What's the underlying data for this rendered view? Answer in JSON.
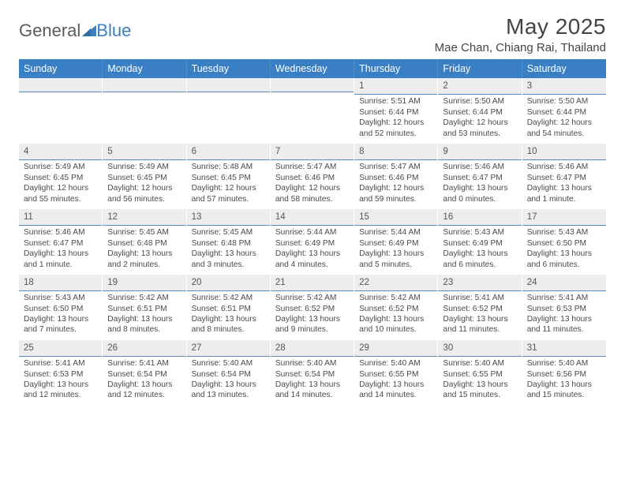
{
  "logo": {
    "part1": "General",
    "part2": "Blue"
  },
  "title": "May 2025",
  "location": "Mae Chan, Chiang Rai, Thailand",
  "weekday_header": {
    "bg_color": "#3a7fc4",
    "text_color": "#ffffff",
    "labels": [
      "Sunday",
      "Monday",
      "Tuesday",
      "Wednesday",
      "Thursday",
      "Friday",
      "Saturday"
    ]
  },
  "daynum_style": {
    "bg_color": "#ededed",
    "underline_color": "#5a8abf"
  },
  "weeks": [
    [
      {
        "day": "",
        "sunrise": "",
        "sunset": "",
        "daylight": ""
      },
      {
        "day": "",
        "sunrise": "",
        "sunset": "",
        "daylight": ""
      },
      {
        "day": "",
        "sunrise": "",
        "sunset": "",
        "daylight": ""
      },
      {
        "day": "",
        "sunrise": "",
        "sunset": "",
        "daylight": ""
      },
      {
        "day": "1",
        "sunrise": "Sunrise: 5:51 AM",
        "sunset": "Sunset: 6:44 PM",
        "daylight": "Daylight: 12 hours and 52 minutes."
      },
      {
        "day": "2",
        "sunrise": "Sunrise: 5:50 AM",
        "sunset": "Sunset: 6:44 PM",
        "daylight": "Daylight: 12 hours and 53 minutes."
      },
      {
        "day": "3",
        "sunrise": "Sunrise: 5:50 AM",
        "sunset": "Sunset: 6:44 PM",
        "daylight": "Daylight: 12 hours and 54 minutes."
      }
    ],
    [
      {
        "day": "4",
        "sunrise": "Sunrise: 5:49 AM",
        "sunset": "Sunset: 6:45 PM",
        "daylight": "Daylight: 12 hours and 55 minutes."
      },
      {
        "day": "5",
        "sunrise": "Sunrise: 5:49 AM",
        "sunset": "Sunset: 6:45 PM",
        "daylight": "Daylight: 12 hours and 56 minutes."
      },
      {
        "day": "6",
        "sunrise": "Sunrise: 5:48 AM",
        "sunset": "Sunset: 6:45 PM",
        "daylight": "Daylight: 12 hours and 57 minutes."
      },
      {
        "day": "7",
        "sunrise": "Sunrise: 5:47 AM",
        "sunset": "Sunset: 6:46 PM",
        "daylight": "Daylight: 12 hours and 58 minutes."
      },
      {
        "day": "8",
        "sunrise": "Sunrise: 5:47 AM",
        "sunset": "Sunset: 6:46 PM",
        "daylight": "Daylight: 12 hours and 59 minutes."
      },
      {
        "day": "9",
        "sunrise": "Sunrise: 5:46 AM",
        "sunset": "Sunset: 6:47 PM",
        "daylight": "Daylight: 13 hours and 0 minutes."
      },
      {
        "day": "10",
        "sunrise": "Sunrise: 5:46 AM",
        "sunset": "Sunset: 6:47 PM",
        "daylight": "Daylight: 13 hours and 1 minute."
      }
    ],
    [
      {
        "day": "11",
        "sunrise": "Sunrise: 5:46 AM",
        "sunset": "Sunset: 6:47 PM",
        "daylight": "Daylight: 13 hours and 1 minute."
      },
      {
        "day": "12",
        "sunrise": "Sunrise: 5:45 AM",
        "sunset": "Sunset: 6:48 PM",
        "daylight": "Daylight: 13 hours and 2 minutes."
      },
      {
        "day": "13",
        "sunrise": "Sunrise: 5:45 AM",
        "sunset": "Sunset: 6:48 PM",
        "daylight": "Daylight: 13 hours and 3 minutes."
      },
      {
        "day": "14",
        "sunrise": "Sunrise: 5:44 AM",
        "sunset": "Sunset: 6:49 PM",
        "daylight": "Daylight: 13 hours and 4 minutes."
      },
      {
        "day": "15",
        "sunrise": "Sunrise: 5:44 AM",
        "sunset": "Sunset: 6:49 PM",
        "daylight": "Daylight: 13 hours and 5 minutes."
      },
      {
        "day": "16",
        "sunrise": "Sunrise: 5:43 AM",
        "sunset": "Sunset: 6:49 PM",
        "daylight": "Daylight: 13 hours and 6 minutes."
      },
      {
        "day": "17",
        "sunrise": "Sunrise: 5:43 AM",
        "sunset": "Sunset: 6:50 PM",
        "daylight": "Daylight: 13 hours and 6 minutes."
      }
    ],
    [
      {
        "day": "18",
        "sunrise": "Sunrise: 5:43 AM",
        "sunset": "Sunset: 6:50 PM",
        "daylight": "Daylight: 13 hours and 7 minutes."
      },
      {
        "day": "19",
        "sunrise": "Sunrise: 5:42 AM",
        "sunset": "Sunset: 6:51 PM",
        "daylight": "Daylight: 13 hours and 8 minutes."
      },
      {
        "day": "20",
        "sunrise": "Sunrise: 5:42 AM",
        "sunset": "Sunset: 6:51 PM",
        "daylight": "Daylight: 13 hours and 8 minutes."
      },
      {
        "day": "21",
        "sunrise": "Sunrise: 5:42 AM",
        "sunset": "Sunset: 6:52 PM",
        "daylight": "Daylight: 13 hours and 9 minutes."
      },
      {
        "day": "22",
        "sunrise": "Sunrise: 5:42 AM",
        "sunset": "Sunset: 6:52 PM",
        "daylight": "Daylight: 13 hours and 10 minutes."
      },
      {
        "day": "23",
        "sunrise": "Sunrise: 5:41 AM",
        "sunset": "Sunset: 6:52 PM",
        "daylight": "Daylight: 13 hours and 11 minutes."
      },
      {
        "day": "24",
        "sunrise": "Sunrise: 5:41 AM",
        "sunset": "Sunset: 6:53 PM",
        "daylight": "Daylight: 13 hours and 11 minutes."
      }
    ],
    [
      {
        "day": "25",
        "sunrise": "Sunrise: 5:41 AM",
        "sunset": "Sunset: 6:53 PM",
        "daylight": "Daylight: 13 hours and 12 minutes."
      },
      {
        "day": "26",
        "sunrise": "Sunrise: 5:41 AM",
        "sunset": "Sunset: 6:54 PM",
        "daylight": "Daylight: 13 hours and 12 minutes."
      },
      {
        "day": "27",
        "sunrise": "Sunrise: 5:40 AM",
        "sunset": "Sunset: 6:54 PM",
        "daylight": "Daylight: 13 hours and 13 minutes."
      },
      {
        "day": "28",
        "sunrise": "Sunrise: 5:40 AM",
        "sunset": "Sunset: 6:54 PM",
        "daylight": "Daylight: 13 hours and 14 minutes."
      },
      {
        "day": "29",
        "sunrise": "Sunrise: 5:40 AM",
        "sunset": "Sunset: 6:55 PM",
        "daylight": "Daylight: 13 hours and 14 minutes."
      },
      {
        "day": "30",
        "sunrise": "Sunrise: 5:40 AM",
        "sunset": "Sunset: 6:55 PM",
        "daylight": "Daylight: 13 hours and 15 minutes."
      },
      {
        "day": "31",
        "sunrise": "Sunrise: 5:40 AM",
        "sunset": "Sunset: 6:56 PM",
        "daylight": "Daylight: 13 hours and 15 minutes."
      }
    ]
  ]
}
